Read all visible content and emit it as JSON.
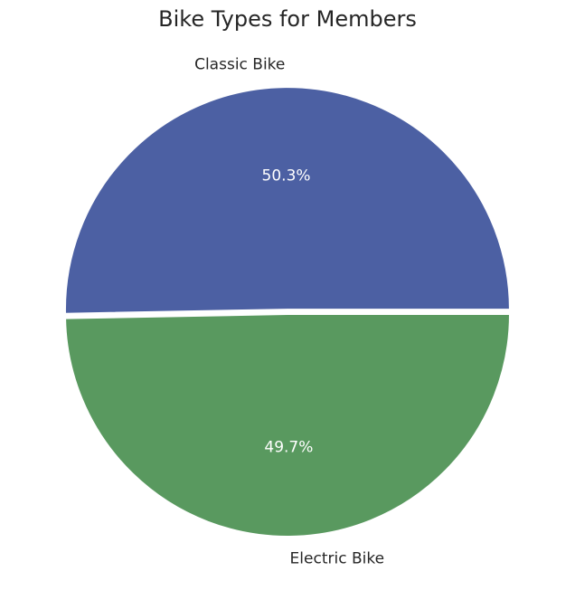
{
  "chart_data": {
    "type": "pie",
    "title": "Bike Types for Members",
    "labels": [
      "Classic Bike",
      "Electric Bike"
    ],
    "values": [
      50.3,
      49.7
    ],
    "percent_labels": [
      "50.3%",
      "49.7%"
    ],
    "colors": [
      "#4c60a3",
      "#59995f"
    ],
    "explode": [
      0.02,
      0
    ]
  }
}
